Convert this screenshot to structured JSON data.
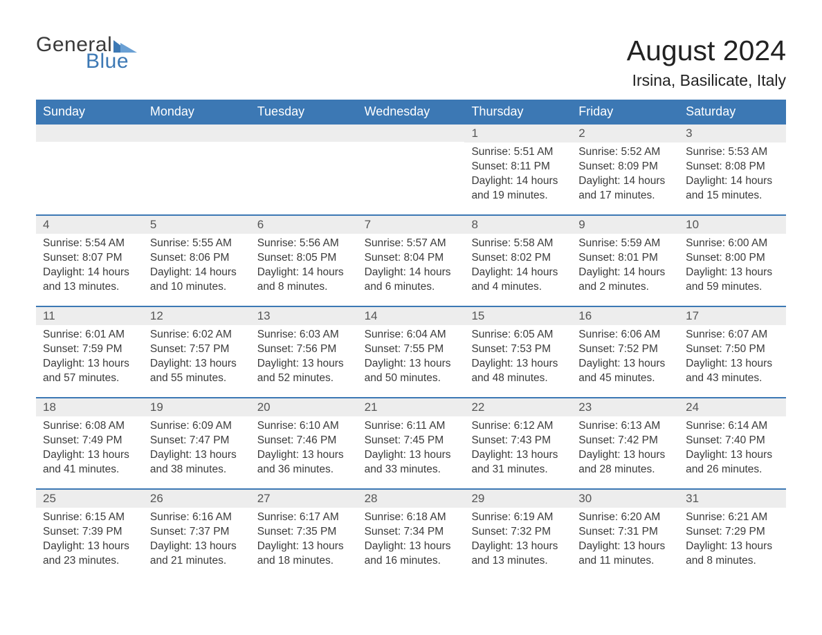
{
  "brand": {
    "word1": "General",
    "word2": "Blue",
    "accent": "#3c78b4",
    "text_color": "#3a3a3a"
  },
  "title": {
    "month": "August 2024",
    "location": "Irsina, Basilicate, Italy",
    "title_fontsize": 41,
    "location_fontsize": 23
  },
  "colors": {
    "header_bg": "#3c78b4",
    "header_text": "#ffffff",
    "daynum_bg": "#ededed",
    "body_text": "#3a3a3a",
    "rule": "#3c78b4",
    "page_bg": "#ffffff"
  },
  "weekdays": [
    "Sunday",
    "Monday",
    "Tuesday",
    "Wednesday",
    "Thursday",
    "Friday",
    "Saturday"
  ],
  "weeks": [
    [
      null,
      null,
      null,
      null,
      {
        "n": "1",
        "sunrise": "5:51 AM",
        "sunset": "8:11 PM",
        "day_h": 14,
        "day_m": 19
      },
      {
        "n": "2",
        "sunrise": "5:52 AM",
        "sunset": "8:09 PM",
        "day_h": 14,
        "day_m": 17
      },
      {
        "n": "3",
        "sunrise": "5:53 AM",
        "sunset": "8:08 PM",
        "day_h": 14,
        "day_m": 15
      }
    ],
    [
      {
        "n": "4",
        "sunrise": "5:54 AM",
        "sunset": "8:07 PM",
        "day_h": 14,
        "day_m": 13
      },
      {
        "n": "5",
        "sunrise": "5:55 AM",
        "sunset": "8:06 PM",
        "day_h": 14,
        "day_m": 10
      },
      {
        "n": "6",
        "sunrise": "5:56 AM",
        "sunset": "8:05 PM",
        "day_h": 14,
        "day_m": 8
      },
      {
        "n": "7",
        "sunrise": "5:57 AM",
        "sunset": "8:04 PM",
        "day_h": 14,
        "day_m": 6
      },
      {
        "n": "8",
        "sunrise": "5:58 AM",
        "sunset": "8:02 PM",
        "day_h": 14,
        "day_m": 4
      },
      {
        "n": "9",
        "sunrise": "5:59 AM",
        "sunset": "8:01 PM",
        "day_h": 14,
        "day_m": 2
      },
      {
        "n": "10",
        "sunrise": "6:00 AM",
        "sunset": "8:00 PM",
        "day_h": 13,
        "day_m": 59
      }
    ],
    [
      {
        "n": "11",
        "sunrise": "6:01 AM",
        "sunset": "7:59 PM",
        "day_h": 13,
        "day_m": 57
      },
      {
        "n": "12",
        "sunrise": "6:02 AM",
        "sunset": "7:57 PM",
        "day_h": 13,
        "day_m": 55
      },
      {
        "n": "13",
        "sunrise": "6:03 AM",
        "sunset": "7:56 PM",
        "day_h": 13,
        "day_m": 52
      },
      {
        "n": "14",
        "sunrise": "6:04 AM",
        "sunset": "7:55 PM",
        "day_h": 13,
        "day_m": 50
      },
      {
        "n": "15",
        "sunrise": "6:05 AM",
        "sunset": "7:53 PM",
        "day_h": 13,
        "day_m": 48
      },
      {
        "n": "16",
        "sunrise": "6:06 AM",
        "sunset": "7:52 PM",
        "day_h": 13,
        "day_m": 45
      },
      {
        "n": "17",
        "sunrise": "6:07 AM",
        "sunset": "7:50 PM",
        "day_h": 13,
        "day_m": 43
      }
    ],
    [
      {
        "n": "18",
        "sunrise": "6:08 AM",
        "sunset": "7:49 PM",
        "day_h": 13,
        "day_m": 41
      },
      {
        "n": "19",
        "sunrise": "6:09 AM",
        "sunset": "7:47 PM",
        "day_h": 13,
        "day_m": 38
      },
      {
        "n": "20",
        "sunrise": "6:10 AM",
        "sunset": "7:46 PM",
        "day_h": 13,
        "day_m": 36
      },
      {
        "n": "21",
        "sunrise": "6:11 AM",
        "sunset": "7:45 PM",
        "day_h": 13,
        "day_m": 33
      },
      {
        "n": "22",
        "sunrise": "6:12 AM",
        "sunset": "7:43 PM",
        "day_h": 13,
        "day_m": 31
      },
      {
        "n": "23",
        "sunrise": "6:13 AM",
        "sunset": "7:42 PM",
        "day_h": 13,
        "day_m": 28
      },
      {
        "n": "24",
        "sunrise": "6:14 AM",
        "sunset": "7:40 PM",
        "day_h": 13,
        "day_m": 26
      }
    ],
    [
      {
        "n": "25",
        "sunrise": "6:15 AM",
        "sunset": "7:39 PM",
        "day_h": 13,
        "day_m": 23
      },
      {
        "n": "26",
        "sunrise": "6:16 AM",
        "sunset": "7:37 PM",
        "day_h": 13,
        "day_m": 21
      },
      {
        "n": "27",
        "sunrise": "6:17 AM",
        "sunset": "7:35 PM",
        "day_h": 13,
        "day_m": 18
      },
      {
        "n": "28",
        "sunrise": "6:18 AM",
        "sunset": "7:34 PM",
        "day_h": 13,
        "day_m": 16
      },
      {
        "n": "29",
        "sunrise": "6:19 AM",
        "sunset": "7:32 PM",
        "day_h": 13,
        "day_m": 13
      },
      {
        "n": "30",
        "sunrise": "6:20 AM",
        "sunset": "7:31 PM",
        "day_h": 13,
        "day_m": 11
      },
      {
        "n": "31",
        "sunrise": "6:21 AM",
        "sunset": "7:29 PM",
        "day_h": 13,
        "day_m": 8
      }
    ]
  ],
  "labels": {
    "sunrise_prefix": "Sunrise: ",
    "sunset_prefix": "Sunset: ",
    "daylight_prefix": "Daylight: ",
    "hours_word": " hours",
    "and_word": "and ",
    "minutes_word": " minutes."
  }
}
